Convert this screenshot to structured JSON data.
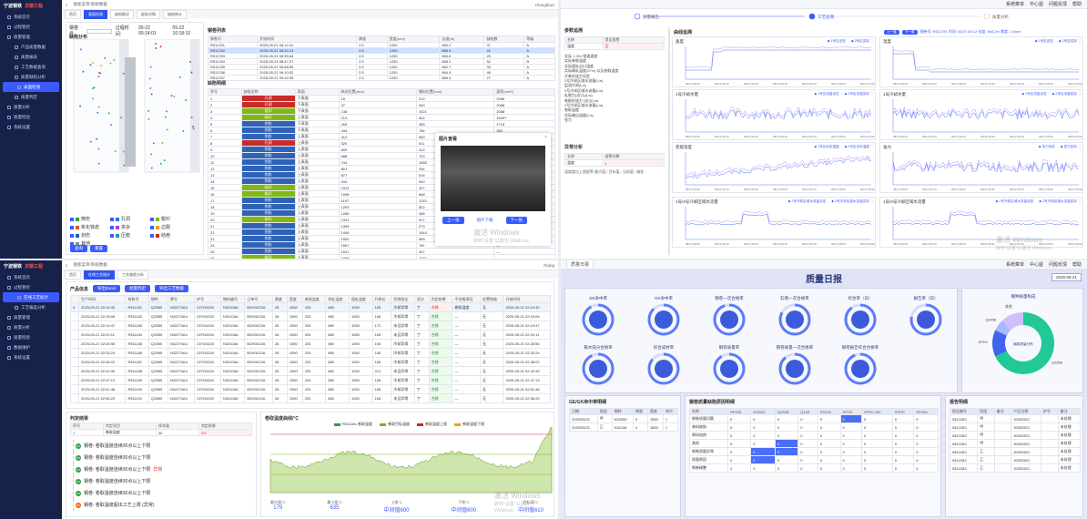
{
  "app": {
    "logo_a": "宁波钢铁",
    "logo_b": "龙钢工程",
    "search_placeholder": "搜索菜单/系统数据",
    "user": "zhangbiwu",
    "user_short": "zhang",
    "top_links": [
      "系统菜单",
      "中心屋",
      "问题反馈",
      "帮助"
    ]
  },
  "sidebar": {
    "items": [
      {
        "label": "系统首页"
      },
      {
        "label": "过程管控"
      },
      {
        "label": "质量管理"
      },
      {
        "label": "产品质量数据"
      },
      {
        "label": "质量报表"
      },
      {
        "label": "工艺数据查询"
      },
      {
        "label": "质量缺陷分析"
      },
      {
        "label": "表面检测"
      },
      {
        "label": "质量判定"
      },
      {
        "label": "质量分析"
      },
      {
        "label": "质量检验"
      },
      {
        "label": "系统设置"
      }
    ],
    "items_bl": [
      {
        "label": "系统首页"
      },
      {
        "label": "过程管控"
      },
      {
        "label": "在线工艺统计"
      },
      {
        "label": "工艺偏差分析"
      },
      {
        "label": "质量管理"
      },
      {
        "label": "质量分析"
      },
      {
        "label": "质量检验"
      },
      {
        "label": "数据维护"
      },
      {
        "label": "系统设置"
      }
    ]
  },
  "tl": {
    "tabs": [
      "首页",
      "表面检测",
      "缺陷概况",
      "缺陷详情",
      "缺陷统计"
    ],
    "coil_label": "钢卷号",
    "time_label": "过程时间:",
    "time_from": "05-22 09:14:01",
    "time_to": "05-22 10:18:10",
    "search": "查询",
    "reset": "重置",
    "section_defect": "缺陷分布",
    "left_tag": "上表面",
    "right_tag": "下表面",
    "section_coils": "钢卷列表",
    "section_details": "缺陷明细",
    "coil_headers": [
      "钢卷号",
      "开始时间",
      "厚度",
      "宽度(mm)",
      "长度(m)",
      "缺陷数",
      "等级"
    ],
    "coil_rows": [
      [
        "R511781",
        "2025-05-21 08:12:41",
        "2.5",
        "1250",
        "864.2",
        "37",
        "A"
      ],
      [
        "R511782",
        "2025-05-21 08:24:13",
        "2.5",
        "1250",
        "866.0",
        "41",
        "A"
      ],
      [
        "R511783",
        "2025-05-21 08:35:54",
        "2.5",
        "1250",
        "863.8",
        "29",
        "A"
      ],
      [
        "R511784",
        "2025-05-21 08:47:27",
        "2.5",
        "1250",
        "865.1",
        "52",
        "B"
      ],
      [
        "R511785",
        "2025-05-21 08:58:59",
        "2.5",
        "1250",
        "862.7",
        "33",
        "A"
      ],
      [
        "R511786",
        "2025-05-21 09:10:32",
        "2.5",
        "1250",
        "864.9",
        "48",
        "A"
      ],
      [
        "R511787",
        "2025-05-21 09:22:05",
        "2.5",
        "1250",
        "866.3",
        "27",
        "A"
      ]
    ],
    "detail_headers": [
      "序号",
      "缺陷名称",
      "表面",
      "纵向位置(mm)",
      "横向位置(mm)",
      "面积(mm²)"
    ],
    "detail_rows": [
      [
        "1",
        "孔洞",
        "下表面",
        "18",
        "912",
        "2088"
      ],
      [
        "2",
        "孔洞",
        "下表面",
        "37",
        "940",
        "2088"
      ],
      [
        "3",
        "辊印",
        "下表面",
        "138",
        "1021",
        "2088"
      ],
      [
        "4",
        "辊印",
        "上表面",
        "214",
        "602",
        "16497"
      ],
      [
        "5",
        "划伤",
        "下表面",
        "263",
        "355",
        "1716"
      ],
      [
        "6",
        "划伤",
        "下表面",
        "344",
        "784",
        "263"
      ],
      [
        "7",
        "划伤",
        "上表面",
        "412",
        "983",
        "1738"
      ],
      [
        "8",
        "孔洞",
        "上表面",
        "520",
        "611",
        "—"
      ],
      [
        "9",
        "划伤",
        "上表面",
        "609",
        "412",
        "—"
      ],
      [
        "10",
        "划伤",
        "上表面",
        "688",
        "703",
        "—"
      ],
      [
        "11",
        "划伤",
        "上表面",
        "744",
        "1085",
        "—"
      ],
      [
        "12",
        "划伤",
        "上表面",
        "801",
        "254",
        "—"
      ],
      [
        "13",
        "划伤",
        "上表面",
        "877",
        "516",
        "—"
      ],
      [
        "14",
        "划伤",
        "上表面",
        "934",
        "940",
        "—"
      ],
      [
        "15",
        "辊印",
        "上表面",
        "1024",
        "327",
        "—"
      ],
      [
        "16",
        "辊印",
        "上表面",
        "1098",
        "668",
        "—"
      ],
      [
        "17",
        "划伤",
        "上表面",
        "1157",
        "1133",
        "—"
      ],
      [
        "18",
        "划伤",
        "上表面",
        "1203",
        "822",
        "—"
      ],
      [
        "19",
        "划伤",
        "上表面",
        "1268",
        "455",
        "—"
      ],
      [
        "20",
        "辊印",
        "上表面",
        "1321",
        "917",
        "—"
      ],
      [
        "21",
        "划伤",
        "上表面",
        "1399",
        "273",
        "—"
      ],
      [
        "22",
        "划伤",
        "上表面",
        "1446",
        "1044",
        "—"
      ],
      [
        "23",
        "划伤",
        "上表面",
        "1502",
        "599",
        "—"
      ],
      [
        "24",
        "划伤",
        "上表面",
        "1567",
        "781",
        "—"
      ],
      [
        "25",
        "划伤",
        "上表面",
        "1621",
        "347",
        "—"
      ],
      [
        "26",
        "辊印",
        "上表面",
        "1688",
        "1172",
        "—"
      ],
      [
        "27",
        "划伤",
        "上表面",
        "1745",
        "683",
        "—"
      ],
      [
        "28",
        "划伤",
        "上表面",
        "1802",
        "512",
        "—"
      ],
      [
        "29",
        "划伤",
        "上表面",
        "1879",
        "926",
        "—"
      ],
      [
        "30",
        "划伤",
        "上表面",
        "1934",
        "398",
        "—"
      ]
    ],
    "legend": [
      "擦伤",
      "孔洞",
      "辊印",
      "氧化铁皮",
      "夹杂",
      "边裂",
      "划伤",
      "压痕",
      "结疤",
      "其他"
    ],
    "legend_colors": [
      "#2f9e44",
      "#1c7ed6",
      "#74b816",
      "#e8590c",
      "#ae3ec9",
      "#f59f00",
      "#1864ab",
      "#0ca678",
      "#c92a2a",
      "#868e96"
    ],
    "popup_title": "图片查看",
    "popup_prev": "上一张",
    "popup_download": "图片下载",
    "popup_next": "下一张",
    "win_watermark": "激活 Windows",
    "win_watermark_sub": "转到\"设置\"以激活 Windows。"
  },
  "tr": {
    "steps": [
      "质量报告",
      "工艺追溯",
      "质量分析"
    ],
    "param_title": "参数追溯",
    "param_headers": [
      "名称",
      "是否报警"
    ],
    "param_row": [
      "温度",
      "否"
    ],
    "param_list": [
      "实际 1 001 辊道速度",
      "实际卷取温度",
      "实际粗轧出口温度",
      "实际精轧温度(C/%) 以及卷取温度",
      "开卷机张力设定",
      "2号冷却区域水流量(L/s)",
      "层流冷却(L/s)",
      "2号冷却区域水流量(L/s)",
      "轧制力(出口)(L/s)",
      "卷取机张力 出口(L/s)",
      "2号冷却区域水流量(L/s)",
      "卷取温度",
      "实际输出温度(L/s)",
      "张力"
    ],
    "anomaly_title": "异常分析",
    "anomaly_headers": [
      "名称",
      "报警次数"
    ],
    "anomaly_row": [
      "温度",
      "1"
    ],
    "anomaly_note": "温度超出上限报警 最大值 / 目标值 / 当前值 / 偏差",
    "curve_title": "曲线追溯",
    "curve_info": "钢卷号: R511781  时间: 05/21 08:12  长度: 864.2m  厚度: 2.5mm",
    "prev": "上一卷",
    "next": "下一卷",
    "charts": [
      {
        "title": "速度",
        "legend": [
          "1号区设定",
          "2号区实际"
        ]
      },
      {
        "title": "温度",
        "legend": [
          "1号区设定",
          "2号区实际"
        ]
      },
      {
        "title": "1号冷却水量",
        "legend": [
          "1号区流量设定",
          "2号区流量实际"
        ]
      },
      {
        "title": "1号冷却水量",
        "legend": [
          "1号区流量设定",
          "2号区流量实际"
        ]
      },
      {
        "title": "卷取温度",
        "legend": [
          "1号区设定温度",
          "2号区实际温度"
        ]
      },
      {
        "title": "张力",
        "legend": [
          "张力设定",
          "张力实际"
        ]
      },
      {
        "title": "1号/2号冷却区域水流量",
        "legend": [
          "1号冷却区域水流量设定",
          "2号冷却区域水流量实际"
        ]
      },
      {
        "title": "1号/2号冷却区域水流量",
        "legend": [
          "1号冷却区域水流量设定",
          "2号冷却区域水流量实际"
        ]
      }
    ],
    "x_ticks": [
      "08/12 08:00",
      "08/12 08:10",
      "08/12 08:20",
      "08/12 08:30",
      "08/12 08:40",
      "08/12 08:50",
      "08/12 09:00"
    ]
  },
  "bl": {
    "tabs": [
      "首页",
      "在线工艺统计",
      "工艺偏差分析"
    ],
    "section_title": "产品信息",
    "buttons": [
      "导出Excel",
      "批量判定",
      "导出工艺数据"
    ],
    "headers": [
      "",
      "生产时间",
      "卷取号",
      "钢种",
      "牌号",
      "炉号",
      "物料编号",
      "订单号",
      "厚度",
      "宽度",
      "卷取温度",
      "终轧温度",
      "粗轧温度",
      "开卷长",
      "异常结论",
      "班次",
      "判定结果",
      "不合格原因",
      "处置措施",
      "开始时间"
    ],
    "rows": [
      [
        "●",
        "2025-05-21 02:10:40",
        "R511181",
        "Q235B",
        "N32270A4",
        "21FD0228",
        "N3210A6",
        "B2H0D22A",
        "28",
        "1550",
        "225",
        "880",
        "1050",
        "165",
        "冷却异常",
        "丁",
        "合格",
        "卷取温度",
        "无",
        "2025-05-21 02:10:40"
      ],
      [
        "",
        "2025-05-21 02:15:06",
        "R511182",
        "Q235B",
        "N32270A4",
        "21FD0228",
        "N3210A6",
        "B2H0D22A",
        "28",
        "1550",
        "225",
        "880",
        "1050",
        "165",
        "冷却异常",
        "丁",
        "合格",
        "—",
        "无",
        "2025-05-21 02:15:06"
      ],
      [
        "",
        "2025-05-21 02:19:47",
        "R511183",
        "Q235B",
        "N32270A4",
        "21FD0228",
        "N3210A6",
        "B2H0D22A",
        "28",
        "1550",
        "225",
        "880",
        "1050",
        "172",
        "未见异常",
        "丁",
        "合格",
        "—",
        "无",
        "2025-05-21 02:19:47"
      ],
      [
        "",
        "2025-05-21 02:24:11",
        "R511184",
        "Q235B",
        "N32270A4",
        "21FD0228",
        "N3210A6",
        "B2H0D22A",
        "28",
        "1550",
        "225",
        "880",
        "1050",
        "165",
        "未见异常",
        "丁",
        "合格",
        "—",
        "无",
        "2025-05-21 02:24:11"
      ],
      [
        "",
        "2025-05-21 02:28:56",
        "R511185",
        "Q235B",
        "N32270A4",
        "21FD0228",
        "N3210A6",
        "B2H0D22A",
        "28",
        "1550",
        "225",
        "880",
        "1050",
        "165",
        "冷却异常",
        "丁",
        "合格",
        "—",
        "无",
        "2025-05-21 02:28:56"
      ],
      [
        "",
        "2025-05-21 02:33:24",
        "R511186",
        "Q235B",
        "N32270A4",
        "21FD0228",
        "N3210A6",
        "B2H0D22A",
        "28",
        "1550",
        "225",
        "880",
        "1050",
        "165",
        "冷却异常",
        "丁",
        "合格",
        "—",
        "无",
        "2025-05-21 02:33:24"
      ],
      [
        "",
        "2025-05-21 02:38:02",
        "R511187",
        "Q235B",
        "N32270A4",
        "21FD0228",
        "N3210A6",
        "B2H0D22A",
        "28",
        "1550",
        "225",
        "880",
        "1050",
        "165",
        "冷却异常",
        "丁",
        "合格",
        "—",
        "无",
        "2025-05-21 02:38:02"
      ],
      [
        "",
        "2025-05-21 02:42:39",
        "R511188",
        "Q235B",
        "N32270A4",
        "21FD0228",
        "N3210A6",
        "B2H0D22A",
        "28",
        "1550",
        "225",
        "880",
        "1050",
        "214",
        "未见异常",
        "丁",
        "合格",
        "—",
        "无",
        "2025-05-21 02:42:39"
      ],
      [
        "",
        "2025-05-21 02:47:13",
        "R511189",
        "Q235B",
        "N32270A4",
        "21FD0228",
        "N3210A6",
        "B2H0D22A",
        "28",
        "1550",
        "225",
        "880",
        "1050",
        "165",
        "冷却异常",
        "丁",
        "合格",
        "—",
        "无",
        "2025-05-21 02:47:13"
      ],
      [
        "",
        "2025-05-21 02:51:48",
        "R511190",
        "Q235B",
        "N32270A4",
        "21FD0228",
        "N3210A6",
        "B2H0D22A",
        "28",
        "1550",
        "225",
        "880",
        "1050",
        "165",
        "冷却异常",
        "丁",
        "合格",
        "—",
        "无",
        "2025-05-21 02:51:48"
      ],
      [
        "",
        "2025-05-21 02:56:20",
        "R511191",
        "Q235B",
        "N32270A4",
        "21FD0228",
        "N3210A6",
        "B2H0D22A",
        "28",
        "1550",
        "225",
        "880",
        "1050",
        "165",
        "未见异常",
        "丁",
        "合格",
        "—",
        "无",
        "2025-05-21 02:56:20"
      ]
    ],
    "judge_title": "判定结果",
    "judge_headers": [
      "序号",
      "判定项目",
      "样本量",
      "判定结果"
    ],
    "judge_row": [
      "1",
      "卷取温度",
      "30",
      "NG"
    ],
    "events": [
      "钢卷: 卷取温度连续30点以上下限",
      "钢卷: 卷取温度连续30点以上下限",
      "钢卷: 卷取温度连续30点以上下限",
      "钢卷: 卷取温度连续30点以上下限",
      "钢卷: 卷取温度连续30点以上下限",
      "钢卷: 卷取温度超出工艺上限 (异常)"
    ],
    "event_tag": "异常",
    "curve_title": "卷取温度曲线/°C",
    "curve_legend": [
      "R511181-卷取温度",
      "卷取目标温度",
      "卷取温度上限",
      "卷取温度下限"
    ],
    "stats_labels": [
      "最大值°C",
      "最小值°C",
      "上限°C",
      "下限°C",
      "目标值°C"
    ],
    "stats_values": [
      "179",
      "635",
      "中间值600",
      "中间值600",
      "中间值610"
    ]
  },
  "br": {
    "tab": "质量日报",
    "title": "质量日报",
    "date": "2025-05-21",
    "gauges": [
      "GE命中率",
      "GK命中率",
      "钢卷一次合格率",
      "轧制一次合格率",
      "综合率（日）",
      "报告率（日）",
      "铁水成分合格率",
      "综合成材率",
      "钢卷质量率",
      "钢卷质量一次合格率",
      "钢卷报告综合合格率"
    ],
    "gauge_values": [
      0.92,
      0.88,
      0.95,
      0.83,
      0.9,
      0.78,
      0.93,
      0.86,
      0.91,
      0.89,
      0.94
    ],
    "donut_title": "钢种质量构成",
    "donut_values": [
      68,
      14,
      6,
      12
    ],
    "donut_colors": [
      "#20c997",
      "#4263eb",
      "#a9b8ff",
      "#d0bfff"
    ],
    "donut_labels": [
      "Q235B",
      "SPHC",
      "Q345B",
      "其他"
    ],
    "donut_center": "钢卷质量分布",
    "table1_title": "GE/GK命中率明细",
    "table1_headers": [
      "日期",
      "班组",
      "钢种",
      "厚度",
      "宽度",
      "命中"
    ],
    "table1_rows": [
      [
        "2025/05/21",
        "甲",
        "N32550",
        "3",
        "1550",
        "√"
      ],
      [
        "2025/05/21",
        "乙",
        "N31108",
        "4",
        "1550",
        "√"
      ]
    ],
    "table2_title": "钢卷质量缺陷原因明细",
    "table2_headers": [
      "项目",
      "名称",
      "HP235",
      "SHDS2",
      "Q235B",
      "Q195",
      "SS330",
      "SPHC",
      "SPHC-DN",
      "SPHD",
      "SPHDL"
    ],
    "table2_groups": [
      "原因",
      "钢卷",
      "设备"
    ],
    "table2_rows": [
      [
        "钢卷质量问题",
        "0",
        "0",
        "0",
        "0",
        "0",
        "0",
        "0",
        "0",
        "0"
      ],
      [
        "来料缺陷",
        "0",
        "0",
        "0",
        "0",
        "0",
        "0",
        "0",
        "0",
        "0"
      ],
      [
        "原料加热",
        "0",
        "0",
        "0",
        "0",
        "0",
        "0",
        "0",
        "0",
        "0"
      ],
      [
        "其他",
        "0",
        "0",
        "0",
        "0",
        "0",
        "0",
        "0",
        "0",
        "0"
      ],
      [
        "钢卷质量异常",
        "0",
        "0",
        "0",
        "0",
        "0",
        "0",
        "0",
        "0",
        "0"
      ],
      [
        "质量原因",
        "0",
        "0",
        "0",
        "0",
        "0",
        "0",
        "0",
        "0",
        "0"
      ],
      [
        "钢卷精整",
        "0",
        "0",
        "0",
        "0",
        "0",
        "0",
        "0",
        "0",
        "0"
      ]
    ],
    "table3_title": "报告明细",
    "table3_headers": [
      "报告编号",
      "班组",
      "备注",
      "产品日期",
      "炉号",
      "备注"
    ],
    "table3_rows": [
      [
        "0812283",
        "甲",
        "",
        "20250521",
        "",
        "未处理"
      ],
      [
        "0812283",
        "甲",
        "",
        "20250521",
        "",
        "未处理"
      ],
      [
        "0812283",
        "甲",
        "",
        "20250521",
        "",
        "未处理"
      ],
      [
        "0812283",
        "甲",
        "",
        "20250521",
        "",
        "未处理"
      ],
      [
        "0812283",
        "乙",
        "",
        "20250521",
        "",
        "未处理"
      ],
      [
        "0812283",
        "乙",
        "",
        "20250521",
        "",
        "未处理"
      ],
      [
        "0812283",
        "乙",
        "",
        "20250521",
        "",
        "未处理"
      ]
    ]
  }
}
